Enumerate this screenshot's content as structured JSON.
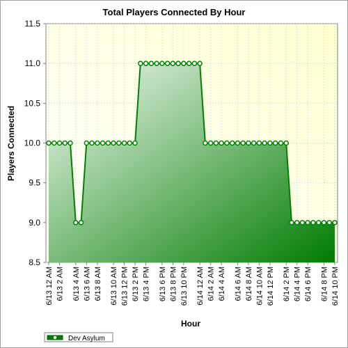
{
  "chart_data": {
    "type": "area",
    "title": "Total Players Connected By Hour",
    "xlabel": "Hour",
    "ylabel": "Players Connected",
    "ylim": [
      8.5,
      11.5
    ],
    "yticks": [
      "8.5",
      "9.0",
      "9.5",
      "10.0",
      "10.5",
      "11.0",
      "11.5"
    ],
    "grid": true,
    "legend_position": "bottom-left",
    "x_tick_labels": [
      "6/13 12 AM",
      "6/13 2 AM",
      "6/13 4 AM",
      "6/13 6 AM",
      "6/13 8 AM",
      "6/13 10 AM",
      "6/13 12 PM",
      "6/13 2 PM",
      "6/13 4 PM",
      "6/13 6 PM",
      "6/13 8 PM",
      "6/13 10 PM",
      "6/14 12 AM",
      "6/14 2 AM",
      "6/14 4 AM",
      "6/14 6 AM",
      "6/14 8 AM",
      "6/14 10 AM",
      "6/14 12 PM",
      "6/14 2 PM",
      "6/14 4 PM",
      "6/14 6 PM",
      "6/14 8 PM",
      "6/14 10 PM"
    ],
    "series": [
      {
        "name": "Dev Asylum",
        "color": "#008000",
        "values": [
          10,
          10,
          10,
          10,
          10,
          9,
          9,
          10,
          10,
          10,
          10,
          10,
          10,
          10,
          10,
          10,
          10,
          11,
          11,
          11,
          11,
          11,
          11,
          11,
          11,
          11,
          11,
          11,
          11,
          10,
          10,
          10,
          10,
          10,
          10,
          10,
          10,
          10,
          10,
          10,
          10,
          10,
          10,
          10,
          10,
          9,
          9,
          9,
          9,
          9,
          9,
          9,
          9,
          9
        ]
      }
    ]
  }
}
